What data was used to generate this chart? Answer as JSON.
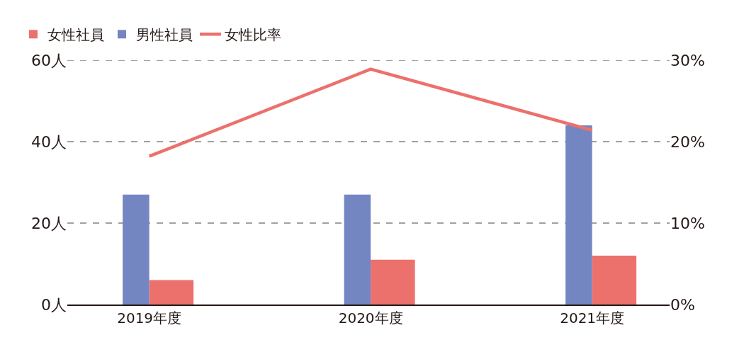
{
  "chart_data": {
    "type": "bar",
    "categories": [
      "2019年度",
      "2020年度",
      "2021年度"
    ],
    "series": [
      {
        "name": "女性社員",
        "color": "#ec706c",
        "values": [
          6,
          11,
          12
        ]
      },
      {
        "name": "男性社員",
        "color": "#7486c1",
        "values": [
          27,
          27,
          44
        ]
      },
      {
        "name": "女性比率",
        "color": "#ec706c",
        "type": "line",
        "axis": "y2",
        "marker": "none",
        "line_style": "solid",
        "values": [
          18.2,
          28.9,
          21.4
        ]
      }
    ],
    "ylim": [
      0,
      60
    ],
    "yticks": [
      {
        "value": 0,
        "label": "0人"
      },
      {
        "value": 20,
        "label": "20人"
      },
      {
        "value": 40,
        "label": "40人"
      },
      {
        "value": 60,
        "label": "60人"
      }
    ],
    "y2lim": [
      0,
      30
    ],
    "y2ticks": [
      {
        "value": 0,
        "label": "0%"
      },
      {
        "value": 10,
        "label": "10%"
      },
      {
        "value": 20,
        "label": "20%"
      },
      {
        "value": 30,
        "label": "30%"
      }
    ],
    "grid": "y",
    "legend": "top left"
  }
}
